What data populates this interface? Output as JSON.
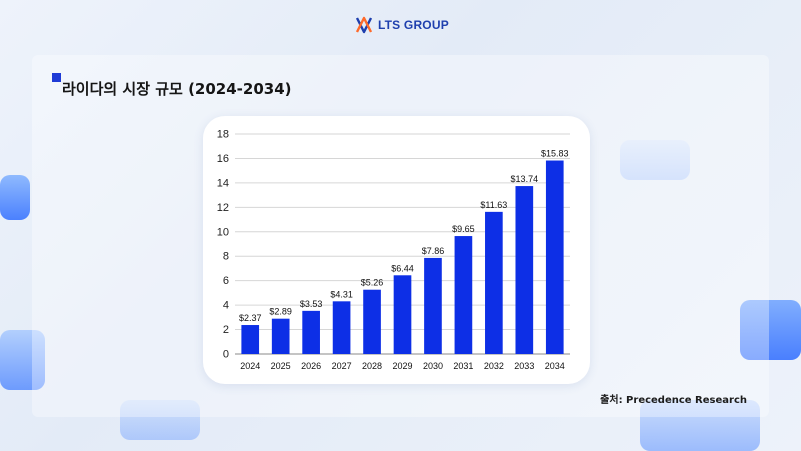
{
  "brand": {
    "name": "LTS GROUP"
  },
  "slide": {
    "title": "라이다의 시장 규모 (2024-2034)",
    "source": "출처: Precedence Research"
  },
  "colors": {
    "bar": "#0d2fe6",
    "accent": "#1f3bd6",
    "brand": "#1e3fae"
  },
  "chart_data": {
    "type": "bar",
    "categories": [
      "2024",
      "2025",
      "2026",
      "2027",
      "2028",
      "2029",
      "2030",
      "2031",
      "2032",
      "2033",
      "2034"
    ],
    "values": [
      2.37,
      2.89,
      3.53,
      4.31,
      5.26,
      6.44,
      7.86,
      9.65,
      11.63,
      13.74,
      15.83
    ],
    "data_labels": [
      "$2.37",
      "$2.89",
      "$3.53",
      "$4.31",
      "$5.26",
      "$6.44",
      "$7.86",
      "$9.65",
      "$11.63",
      "$13.74",
      "$15.83"
    ],
    "y_ticks": [
      0,
      2,
      4,
      6,
      8,
      10,
      12,
      14,
      16,
      18
    ],
    "ylim": [
      0,
      18
    ],
    "grid": true,
    "legend": "none"
  }
}
